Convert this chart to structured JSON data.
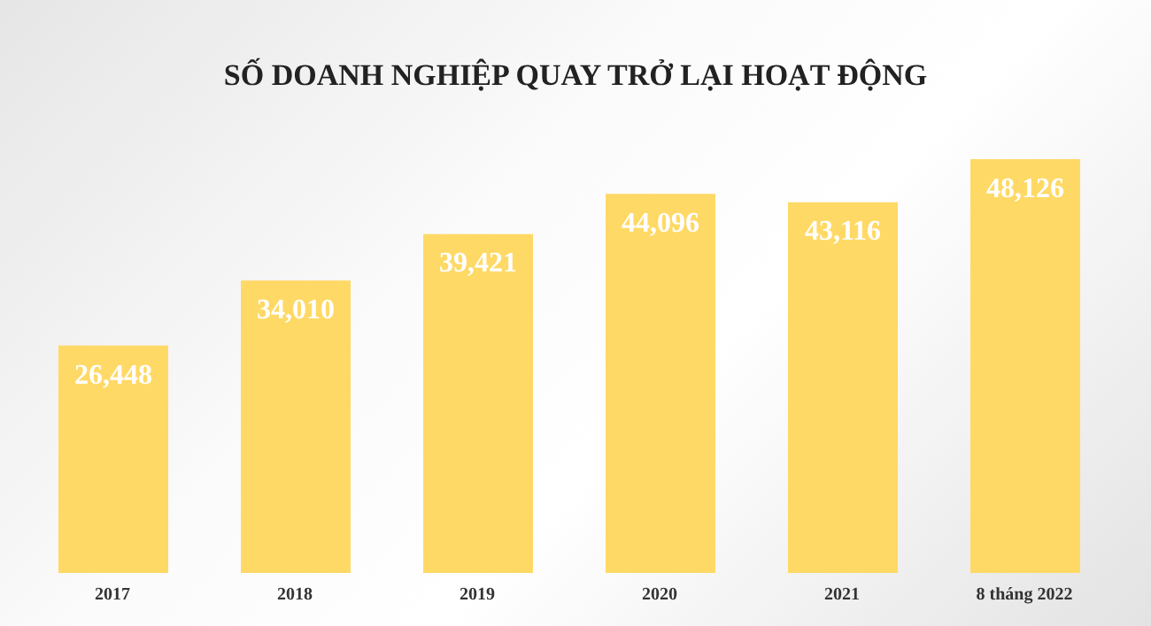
{
  "chart_data": {
    "type": "bar",
    "title": "SỐ DOANH NGHIỆP QUAY TRỞ LẠI HOẠT ĐỘNG",
    "categories": [
      "2017",
      "2018",
      "2019",
      "2020",
      "2021",
      "8 tháng 2022"
    ],
    "values": [
      26448,
      34010,
      39421,
      44096,
      43116,
      48126
    ],
    "value_labels": [
      "26,448",
      "34,010",
      "39,421",
      "44,096",
      "43,116",
      "48,126"
    ],
    "color": "#ffd966"
  }
}
